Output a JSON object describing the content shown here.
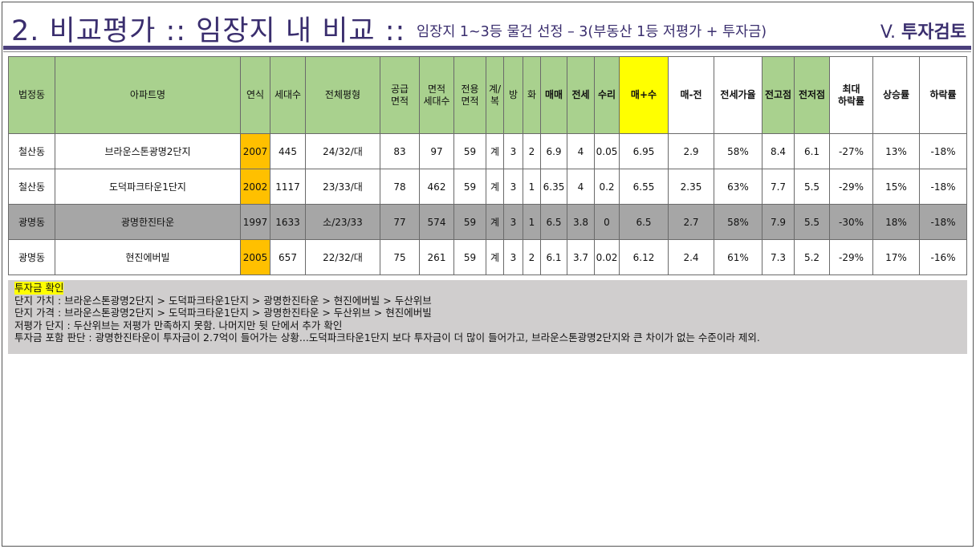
{
  "header": {
    "title": "2. 비교평가 :: 임장지 내 비교 ::",
    "subtitle": "임장지 1~3등 물건 선정 – 3(부동산 1등 저평가 + 투자금)",
    "section_prefix": "V.",
    "section_name": "투자검토"
  },
  "table": {
    "columns": [
      "법정동",
      "아파트명",
      "연식",
      "세대수",
      "전체평형",
      "공급\n면적",
      "면적\n세대수",
      "전용\n면적",
      "계/\n복",
      "방",
      "화",
      "매매",
      "전세",
      "수리",
      "매+수",
      "매-전",
      "전세가율",
      "전고점",
      "전저점",
      "최대\n하락률",
      "상승률",
      "하락률"
    ],
    "rows": [
      {
        "cells": [
          "철산동",
          "브라운스톤광명2단지",
          "2007",
          "445",
          "24/32/대",
          "83",
          "97",
          "59",
          "계",
          "3",
          "2",
          "6.9",
          "4",
          "0.05",
          "6.95",
          "2.9",
          "58%",
          "8.4",
          "6.1",
          "-27%",
          "13%",
          "-18%"
        ],
        "highlight": false,
        "year_highlight": true
      },
      {
        "cells": [
          "철산동",
          "도덕파크타운1단지",
          "2002",
          "1117",
          "23/33/대",
          "78",
          "462",
          "59",
          "계",
          "3",
          "1",
          "6.35",
          "4",
          "0.2",
          "6.55",
          "2.35",
          "63%",
          "7.7",
          "5.5",
          "-29%",
          "15%",
          "-18%"
        ],
        "highlight": false,
        "year_highlight": true
      },
      {
        "cells": [
          "광명동",
          "광명한진타운",
          "1997",
          "1633",
          "소/23/33",
          "77",
          "574",
          "59",
          "계",
          "3",
          "1",
          "6.5",
          "3.8",
          "0",
          "6.5",
          "2.7",
          "58%",
          "7.9",
          "5.5",
          "-30%",
          "18%",
          "-18%"
        ],
        "highlight": true,
        "year_highlight": false
      },
      {
        "cells": [
          "광명동",
          "현진에버빌",
          "2005",
          "657",
          "22/32/대",
          "75",
          "261",
          "59",
          "계",
          "3",
          "2",
          "6.1",
          "3.7",
          "0.02",
          "6.12",
          "2.4",
          "61%",
          "7.3",
          "5.2",
          "-29%",
          "17%",
          "-16%"
        ],
        "highlight": false,
        "year_highlight": true
      }
    ]
  },
  "notes": {
    "heading": "투자금 확인",
    "lines": [
      "단지 가치 : 브라운스톤광명2단지 > 도덕파크타운1단지 > 광명한진타운 > 현진에버빌 > 두산위브",
      "단지 가격 : 브라운스톤광명2단지 > 도덕파크타운1단지 > 광명한진타운 > 두산위브 > 현진에버빌",
      "저평가 단지 : 두산위브는 저평가 만족하지 못함. 나머지만 뒷 단에서 추가 확인",
      "투자금 포함 판단 : 광명한진타운이 투자금이 2.7억이 들어가는 상황...도덕파크타운1단지 보다 투자금이 더 많이 들어가고, 브라운스톤광명2단지와 큰 차이가 없는 수준이라 제외."
    ]
  },
  "colors": {
    "accent": "#3a2e6e",
    "header_green": "#a9d18e",
    "year_orange": "#ffc000",
    "highlight_yellow": "#ffff00",
    "row_gray": "#a6a6a6",
    "notes_bg": "#d0cece"
  }
}
